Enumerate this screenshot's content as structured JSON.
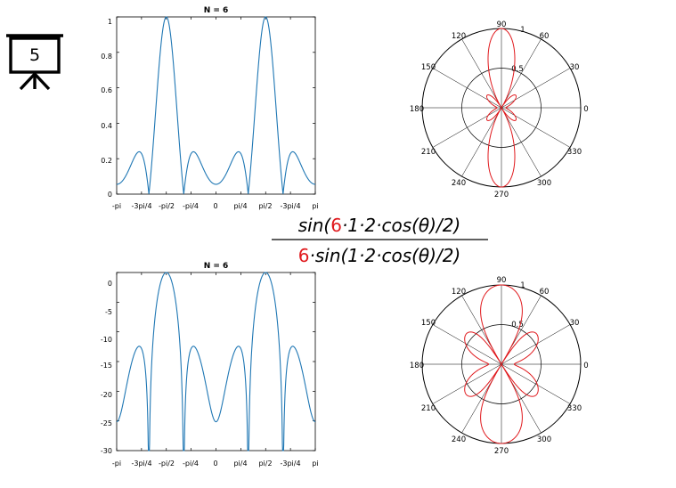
{
  "slide": {
    "badge_number": "5",
    "formula": {
      "numerator": [
        "sin(",
        "6",
        "·1·2·cos(θ)/2)"
      ],
      "denominator": [
        "6",
        "·sin(1·2·cos(θ)/2)"
      ],
      "highlight_color": "#e0191d"
    }
  },
  "chart_data": [
    {
      "type": "line",
      "title": "N = 6",
      "function": "|sin(6·1·2·cos(θ)/2) / (6·sin(1·2·cos(θ)/2))|",
      "xlim": [
        "-pi",
        "pi"
      ],
      "xticks": [
        "-pi",
        "-3pi/4",
        "-pi/2",
        "-pi/4",
        "0",
        "pi/4",
        "pi/2",
        "-3pi/4",
        "pi"
      ],
      "yticks": [
        "0",
        "0.2",
        "0.4",
        "0.6",
        "0.8",
        "1"
      ],
      "ylim": [
        0,
        1
      ],
      "series": [
        {
          "color": "#1f77b4"
        }
      ],
      "grid": false
    },
    {
      "type": "polar",
      "function": "|sin(6·1·2·cos(θ)/2) / (6·sin(1·2·cos(θ)/2))|",
      "angle_labels": [
        "0",
        "30",
        "60",
        "90",
        "120",
        "150",
        "180",
        "210",
        "240",
        "270",
        "300",
        "330"
      ],
      "radial_labels": [
        "0.5",
        "1"
      ],
      "rlim": [
        0,
        1
      ],
      "series": [
        {
          "color": "#e0191d"
        }
      ]
    },
    {
      "type": "line",
      "title": "N = 6",
      "function": "20·log10 of the normalized array factor",
      "xlim": [
        "-pi",
        "pi"
      ],
      "xticks": [
        "-pi",
        "-3pi/4",
        "-pi/2",
        "-pi/4",
        "0",
        "pi/4",
        "pi/2",
        "-3pi/4",
        "pi"
      ],
      "yticks": [
        "-30",
        "-25",
        "-20",
        "-15",
        "-10",
        "-5",
        "0"
      ],
      "ylim": [
        -30,
        0
      ],
      "series": [
        {
          "color": "#1f77b4"
        }
      ],
      "grid": false
    },
    {
      "type": "polar",
      "function": "20·log10 of the normalized array factor, plotted as r = (dB + 30)/30",
      "angle_labels": [
        "0",
        "30",
        "60",
        "90",
        "120",
        "150",
        "180",
        "210",
        "240",
        "270",
        "300",
        "330"
      ],
      "radial_labels": [
        "0.5",
        "1"
      ],
      "rlim": [
        0,
        1
      ],
      "series": [
        {
          "color": "#e0191d"
        }
      ]
    }
  ]
}
